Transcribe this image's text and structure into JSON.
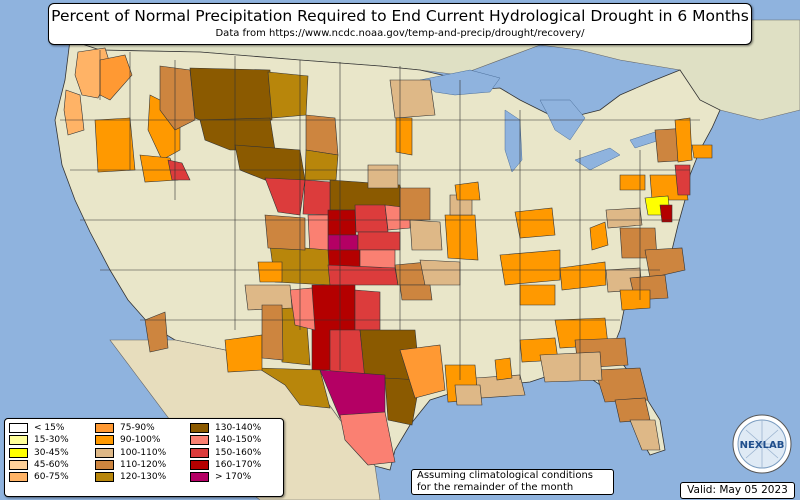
{
  "title": "Percent of Normal Precipitation Required to End Current Hydrological Drought in 6 Months",
  "subtitle": "Data from https://www.ncdc.noaa.gov/temp-and-precip/drought/recovery/",
  "note_lines": [
    "Assuming climatological conditions",
    "for the remainder of the month"
  ],
  "valid_text": "Valid: May 05 2023",
  "logo_text": "NEXLAB",
  "colors": {
    "ocean": "#8fb3de",
    "land": "#e9e6c9",
    "canada": "#dfe0c4",
    "mexico": "#e7ddbd",
    "lakes": "#8fb3de",
    "borders": "#333333"
  },
  "legend": [
    {
      "label": "< 15%",
      "color": "#ffffff"
    },
    {
      "label": "15-30%",
      "color": "#ffff99"
    },
    {
      "label": "30-45%",
      "color": "#ffff00"
    },
    {
      "label": "45-60%",
      "color": "#ffd199"
    },
    {
      "label": "60-75%",
      "color": "#ffb366"
    },
    {
      "label": "75-90%",
      "color": "#ff9933"
    },
    {
      "label": "90-100%",
      "color": "#ff9900"
    },
    {
      "label": "100-110%",
      "color": "#deb887"
    },
    {
      "label": "110-120%",
      "color": "#cd853f"
    },
    {
      "label": "120-130%",
      "color": "#b8860b"
    },
    {
      "label": "130-140%",
      "color": "#8b5a00"
    },
    {
      "label": "140-150%",
      "color": "#fa8072"
    },
    {
      "label": "150-160%",
      "color": "#dc3c3c"
    },
    {
      "label": "160-170%",
      "color": "#b40000"
    },
    {
      "label": "> 170%",
      "color": "#b40064"
    }
  ],
  "icons": [
    "nexlab-logo-icon"
  ]
}
